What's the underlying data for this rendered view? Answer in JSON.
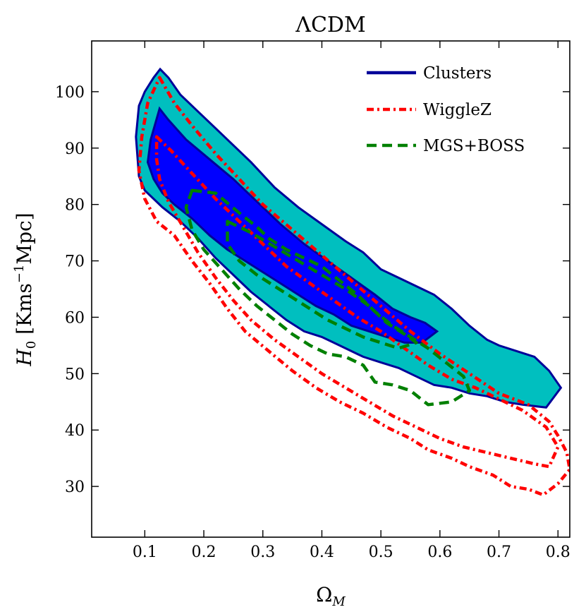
{
  "chart_data": {
    "type": "contour",
    "title": "ΛCDM",
    "xlabel": {
      "symbol": "Ω",
      "sub": "M"
    },
    "ylabel": {
      "symbol": "H",
      "sub": "0",
      "units_prefix": "[Kms",
      "units_sup": "−1",
      "units_suffix": "Mpc]"
    },
    "xlim": [
      0.01,
      0.82
    ],
    "ylim": [
      21,
      109
    ],
    "xticks": [
      0.1,
      0.2,
      0.3,
      0.4,
      0.5,
      0.6,
      0.7,
      0.8
    ],
    "xtick_labels": [
      "0.1",
      "0.2",
      "0.3",
      "0.4",
      "0.5",
      "0.6",
      "0.7",
      "0.8"
    ],
    "yticks": [
      30,
      40,
      50,
      60,
      70,
      80,
      90,
      100
    ],
    "ytick_labels": [
      "30",
      "40",
      "50",
      "60",
      "70",
      "80",
      "90",
      "100"
    ],
    "legend_position": "top-right",
    "series": [
      {
        "name": "Clusters",
        "style": "solid",
        "color": "#000099",
        "fill_outer": "#00bfbf",
        "fill_inner": "#0000ff",
        "contours": [
          {
            "level": "2sigma",
            "points": [
              [
                0.126,
                104.0
              ],
              [
                0.14,
                102.5
              ],
              [
                0.16,
                99.5
              ],
              [
                0.19,
                96.5
              ],
              [
                0.22,
                93.5
              ],
              [
                0.25,
                90.5
              ],
              [
                0.28,
                87.5
              ],
              [
                0.32,
                83.0
              ],
              [
                0.36,
                79.5
              ],
              [
                0.4,
                76.5
              ],
              [
                0.44,
                73.5
              ],
              [
                0.47,
                71.5
              ],
              [
                0.5,
                68.5
              ],
              [
                0.53,
                67.0
              ],
              [
                0.56,
                65.5
              ],
              [
                0.59,
                64.0
              ],
              [
                0.62,
                61.5
              ],
              [
                0.65,
                58.5
              ],
              [
                0.68,
                56.0
              ],
              [
                0.7,
                55.0
              ],
              [
                0.73,
                54.0
              ],
              [
                0.76,
                53.0
              ],
              [
                0.785,
                50.5
              ],
              [
                0.805,
                47.5
              ],
              [
                0.78,
                44.0
              ],
              [
                0.74,
                44.5
              ],
              [
                0.71,
                45.0
              ],
              [
                0.68,
                46.0
              ],
              [
                0.65,
                46.5
              ],
              [
                0.62,
                47.5
              ],
              [
                0.59,
                48.0
              ],
              [
                0.56,
                49.5
              ],
              [
                0.53,
                51.0
              ],
              [
                0.5,
                52.0
              ],
              [
                0.47,
                53.0
              ],
              [
                0.44,
                54.5
              ],
              [
                0.42,
                55.5
              ],
              [
                0.4,
                56.5
              ],
              [
                0.37,
                57.5
              ],
              [
                0.34,
                59.5
              ],
              [
                0.31,
                62.0
              ],
              [
                0.28,
                64.5
              ],
              [
                0.25,
                67.5
              ],
              [
                0.22,
                70.5
              ],
              [
                0.19,
                74.0
              ],
              [
                0.16,
                77.0
              ],
              [
                0.13,
                79.5
              ],
              [
                0.1,
                82.5
              ],
              [
                0.09,
                85.0
              ],
              [
                0.085,
                92.0
              ],
              [
                0.09,
                97.5
              ],
              [
                0.1,
                100.0
              ],
              [
                0.115,
                102.5
              ]
            ]
          },
          {
            "level": "1sigma",
            "points": [
              [
                0.125,
                97.0
              ],
              [
                0.14,
                95.0
              ],
              [
                0.17,
                91.5
              ],
              [
                0.21,
                88.0
              ],
              [
                0.25,
                84.5
              ],
              [
                0.29,
                80.5
              ],
              [
                0.33,
                76.5
              ],
              [
                0.37,
                73.0
              ],
              [
                0.41,
                70.0
              ],
              [
                0.45,
                67.0
              ],
              [
                0.49,
                64.0
              ],
              [
                0.52,
                61.5
              ],
              [
                0.55,
                60.0
              ],
              [
                0.575,
                59.0
              ],
              [
                0.595,
                57.5
              ],
              [
                0.57,
                55.5
              ],
              [
                0.54,
                55.5
              ],
              [
                0.51,
                56.5
              ],
              [
                0.48,
                57.5
              ],
              [
                0.45,
                58.5
              ],
              [
                0.42,
                60.5
              ],
              [
                0.39,
                62.0
              ],
              [
                0.36,
                64.0
              ],
              [
                0.33,
                66.0
              ],
              [
                0.3,
                68.0
              ],
              [
                0.27,
                70.0
              ],
              [
                0.24,
                72.0
              ],
              [
                0.21,
                74.5
              ],
              [
                0.18,
                77.5
              ],
              [
                0.15,
                80.0
              ],
              [
                0.13,
                82.0
              ],
              [
                0.115,
                84.5
              ],
              [
                0.105,
                87.5
              ],
              [
                0.11,
                91.5
              ]
            ]
          }
        ]
      },
      {
        "name": "WiggleZ",
        "style": "dash-dot",
        "color": "#ff0000",
        "contours": [
          {
            "level": "2sigma",
            "points": [
              [
                0.125,
                102.5
              ],
              [
                0.15,
                98.0
              ],
              [
                0.18,
                94.0
              ],
              [
                0.22,
                89.0
              ],
              [
                0.26,
                84.5
              ],
              [
                0.3,
                80.0
              ],
              [
                0.35,
                75.5
              ],
              [
                0.4,
                71.0
              ],
              [
                0.45,
                66.5
              ],
              [
                0.5,
                62.0
              ],
              [
                0.55,
                57.5
              ],
              [
                0.6,
                53.5
              ],
              [
                0.65,
                50.0
              ],
              [
                0.7,
                46.5
              ],
              [
                0.75,
                44.5
              ],
              [
                0.785,
                41.5
              ],
              [
                0.8,
                39.0
              ],
              [
                0.815,
                36.0
              ],
              [
                0.82,
                33.0
              ],
              [
                0.8,
                30.5
              ],
              [
                0.775,
                28.5
              ],
              [
                0.75,
                29.5
              ],
              [
                0.72,
                30.0
              ],
              [
                0.69,
                32.0
              ],
              [
                0.65,
                33.5
              ],
              [
                0.62,
                35.0
              ],
              [
                0.58,
                36.5
              ],
              [
                0.55,
                38.5
              ],
              [
                0.51,
                40.5
              ],
              [
                0.47,
                43.0
              ],
              [
                0.43,
                45.0
              ],
              [
                0.39,
                47.5
              ],
              [
                0.35,
                50.5
              ],
              [
                0.31,
                54.0
              ],
              [
                0.27,
                57.5
              ],
              [
                0.24,
                61.5
              ],
              [
                0.21,
                66.0
              ],
              [
                0.18,
                70.0
              ],
              [
                0.15,
                74.5
              ],
              [
                0.12,
                77.0
              ],
              [
                0.1,
                81.0
              ],
              [
                0.09,
                86.0
              ],
              [
                0.095,
                92.0
              ],
              [
                0.105,
                98.0
              ]
            ]
          },
          {
            "level": "1sigma",
            "points": [
              [
                0.12,
                92.0
              ],
              [
                0.145,
                89.5
              ],
              [
                0.18,
                85.5
              ],
              [
                0.22,
                81.0
              ],
              [
                0.26,
                77.0
              ],
              [
                0.3,
                73.0
              ],
              [
                0.34,
                69.0
              ],
              [
                0.38,
                66.0
              ],
              [
                0.42,
                63.0
              ],
              [
                0.46,
                60.0
              ],
              [
                0.5,
                57.5
              ],
              [
                0.54,
                54.5
              ],
              [
                0.58,
                51.5
              ],
              [
                0.62,
                49.0
              ],
              [
                0.66,
                47.5
              ],
              [
                0.7,
                45.5
              ],
              [
                0.74,
                43.5
              ],
              [
                0.78,
                40.5
              ],
              [
                0.8,
                37.0
              ],
              [
                0.785,
                33.5
              ],
              [
                0.76,
                34.0
              ],
              [
                0.72,
                35.0
              ],
              [
                0.68,
                36.0
              ],
              [
                0.64,
                37.0
              ],
              [
                0.6,
                38.5
              ],
              [
                0.56,
                40.5
              ],
              [
                0.52,
                42.5
              ],
              [
                0.48,
                45.0
              ],
              [
                0.44,
                47.5
              ],
              [
                0.4,
                50.0
              ],
              [
                0.36,
                53.0
              ],
              [
                0.32,
                56.0
              ],
              [
                0.28,
                59.5
              ],
              [
                0.25,
                63.0
              ],
              [
                0.22,
                67.0
              ],
              [
                0.19,
                71.5
              ],
              [
                0.165,
                76.0
              ],
              [
                0.14,
                80.5
              ],
              [
                0.125,
                84.5
              ],
              [
                0.12,
                88.0
              ]
            ]
          }
        ]
      },
      {
        "name": "MGS+BOSS",
        "style": "dashed",
        "color": "#008000",
        "contours": [
          {
            "level": "2sigma",
            "points": [
              [
                0.18,
                82.5
              ],
              [
                0.22,
                82.0
              ],
              [
                0.26,
                78.5
              ],
              [
                0.29,
                76.0
              ],
              [
                0.31,
                74.0
              ],
              [
                0.34,
                72.0
              ],
              [
                0.37,
                70.5
              ],
              [
                0.4,
                69.0
              ],
              [
                0.43,
                66.5
              ],
              [
                0.46,
                64.0
              ],
              [
                0.49,
                61.0
              ],
              [
                0.52,
                58.5
              ],
              [
                0.55,
                56.5
              ],
              [
                0.58,
                54.5
              ],
              [
                0.61,
                52.0
              ],
              [
                0.64,
                49.5
              ],
              [
                0.65,
                47.0
              ],
              [
                0.62,
                45.0
              ],
              [
                0.58,
                44.5
              ],
              [
                0.55,
                47.0
              ],
              [
                0.52,
                48.0
              ],
              [
                0.49,
                48.5
              ],
              [
                0.47,
                51.5
              ],
              [
                0.44,
                53.0
              ],
              [
                0.41,
                53.5
              ],
              [
                0.38,
                55.0
              ],
              [
                0.35,
                57.0
              ],
              [
                0.32,
                59.5
              ],
              [
                0.29,
                62.0
              ],
              [
                0.26,
                65.0
              ],
              [
                0.23,
                68.5
              ],
              [
                0.2,
                72.0
              ],
              [
                0.18,
                75.5
              ],
              [
                0.17,
                79.5
              ]
            ]
          },
          {
            "level": "1sigma",
            "points": [
              [
                0.24,
                77.0
              ],
              [
                0.28,
                75.0
              ],
              [
                0.32,
                72.5
              ],
              [
                0.36,
                70.0
              ],
              [
                0.4,
                67.5
              ],
              [
                0.44,
                65.0
              ],
              [
                0.48,
                62.0
              ],
              [
                0.51,
                59.0
              ],
              [
                0.54,
                57.0
              ],
              [
                0.56,
                55.5
              ],
              [
                0.53,
                54.5
              ],
              [
                0.5,
                55.5
              ],
              [
                0.47,
                56.5
              ],
              [
                0.44,
                58.0
              ],
              [
                0.41,
                59.5
              ],
              [
                0.38,
                61.5
              ],
              [
                0.35,
                63.5
              ],
              [
                0.32,
                65.5
              ],
              [
                0.29,
                67.5
              ],
              [
                0.26,
                70.0
              ],
              [
                0.24,
                73.0
              ]
            ]
          }
        ]
      }
    ]
  }
}
